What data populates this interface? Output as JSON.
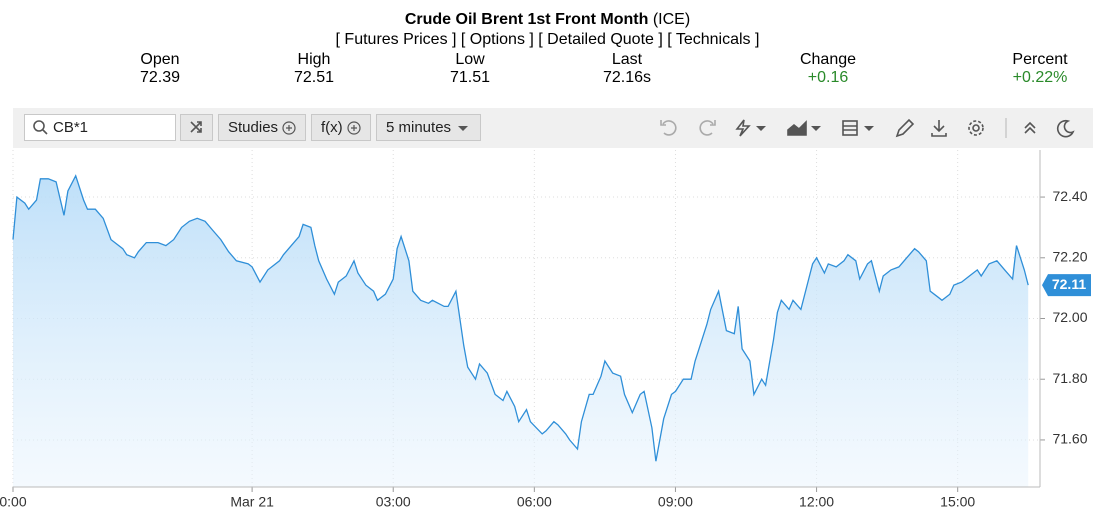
{
  "header": {
    "title": "Crude Oil Brent 1st Front Month",
    "exchange": "(ICE)"
  },
  "nav": {
    "links": [
      "[ Futures Prices ]",
      "[ Options ]",
      "[ Detailed Quote ]",
      "[ Technicals ]"
    ]
  },
  "quote": {
    "items": [
      {
        "label": "Open",
        "value": "72.39"
      },
      {
        "label": "High",
        "value": "72.51"
      },
      {
        "label": "Low",
        "value": "71.51"
      },
      {
        "label": "Last",
        "value": "72.16s"
      },
      {
        "label": "Change",
        "value": "+0.16"
      },
      {
        "label": "Percent",
        "value": "+0.22%"
      }
    ]
  },
  "toolbar": {
    "search": "CB*1",
    "buttons": [
      "Studies",
      "f(x)",
      "5 minutes"
    ]
  },
  "chart_data": {
    "type": "area",
    "color": "#2f8fd8",
    "grid": true,
    "last_value": 72.11,
    "xlim": [
      0,
      262
    ],
    "ylim": [
      71.445,
      72.555
    ],
    "xticks": [
      {
        "value": 0,
        "label": "0:00"
      },
      {
        "value": 61,
        "label": "Mar 21"
      },
      {
        "value": 97,
        "label": "03:00"
      },
      {
        "value": 133,
        "label": "06:00"
      },
      {
        "value": 169,
        "label": "09:00"
      },
      {
        "value": 205,
        "label": "12:00"
      },
      {
        "value": 241,
        "label": "15:00"
      }
    ],
    "yticks": [
      {
        "value": 71.6,
        "label": "71.60"
      },
      {
        "value": 71.8,
        "label": "71.80"
      },
      {
        "value": 72.0,
        "label": "72.00"
      },
      {
        "value": 72.2,
        "label": "72.20"
      },
      {
        "value": 72.4,
        "label": "72.40"
      }
    ],
    "x": [
      0,
      1,
      3,
      4,
      6,
      7,
      9,
      11,
      13,
      14,
      16,
      18,
      19,
      21,
      23,
      25,
      26,
      28,
      29,
      31,
      32,
      34,
      35,
      37,
      39,
      41,
      43,
      45,
      47,
      49,
      51,
      53,
      55,
      57,
      60,
      61,
      63,
      65,
      66,
      68,
      69,
      71,
      73,
      74,
      76,
      77,
      78,
      80,
      82,
      83,
      85,
      87,
      88,
      90,
      92,
      93,
      95,
      97,
      98,
      99,
      101,
      102,
      104,
      106,
      107,
      110,
      111,
      113,
      115,
      116,
      118,
      119,
      121,
      123,
      125,
      126,
      128,
      129,
      131,
      132,
      135,
      136,
      138,
      139,
      141,
      142,
      144,
      145,
      147,
      148,
      150,
      151,
      153,
      155,
      156,
      158,
      160,
      161,
      163,
      164,
      166,
      168,
      169,
      171,
      173,
      174,
      175,
      177,
      178,
      180,
      182,
      184,
      185,
      186,
      188,
      189,
      191,
      192,
      194,
      195,
      196,
      198,
      199,
      201,
      203,
      204,
      205,
      207,
      208,
      210,
      212,
      213,
      215,
      216,
      218,
      219,
      221,
      222,
      224,
      226,
      228,
      230,
      231,
      233,
      234,
      236,
      237,
      239,
      240,
      242,
      244,
      246,
      247,
      249,
      251,
      253,
      255,
      256,
      258,
      259
    ],
    "values": [
      72.26,
      72.4,
      72.38,
      72.36,
      72.39,
      72.46,
      72.46,
      72.45,
      72.34,
      72.42,
      72.47,
      72.39,
      72.36,
      72.36,
      72.33,
      72.26,
      72.25,
      72.23,
      72.21,
      72.2,
      72.22,
      72.25,
      72.25,
      72.25,
      72.24,
      72.26,
      72.3,
      72.32,
      72.33,
      72.32,
      72.29,
      72.26,
      72.22,
      72.19,
      72.18,
      72.17,
      72.12,
      72.16,
      72.17,
      72.19,
      72.21,
      72.24,
      72.27,
      72.31,
      72.3,
      72.24,
      72.19,
      72.13,
      72.08,
      72.12,
      72.14,
      72.19,
      72.15,
      72.11,
      72.09,
      72.06,
      72.08,
      72.13,
      72.23,
      72.27,
      72.19,
      72.09,
      72.06,
      72.05,
      72.06,
      72.04,
      72.04,
      72.09,
      71.91,
      71.84,
      71.8,
      71.85,
      71.82,
      71.75,
      71.73,
      71.76,
      71.71,
      71.66,
      71.7,
      71.66,
      71.62,
      71.63,
      71.66,
      71.65,
      71.62,
      71.6,
      71.57,
      71.66,
      71.75,
      71.75,
      71.81,
      71.86,
      71.82,
      71.81,
      71.75,
      71.69,
      71.75,
      71.76,
      71.64,
      71.53,
      71.67,
      71.75,
      71.76,
      71.8,
      71.8,
      71.86,
      71.9,
      71.98,
      72.03,
      72.09,
      71.96,
      71.95,
      72.04,
      71.9,
      71.86,
      71.75,
      71.8,
      71.78,
      71.93,
      72.02,
      72.06,
      72.03,
      72.06,
      72.03,
      72.13,
      72.18,
      72.2,
      72.15,
      72.18,
      72.17,
      72.19,
      72.21,
      72.19,
      72.13,
      72.18,
      72.19,
      72.09,
      72.14,
      72.16,
      72.17,
      72.2,
      72.23,
      72.22,
      72.19,
      72.09,
      72.07,
      72.06,
      72.08,
      72.11,
      72.12,
      72.14,
      72.16,
      72.14,
      72.18,
      72.19,
      72.16,
      72.13,
      72.24,
      72.16,
      72.11
    ]
  }
}
